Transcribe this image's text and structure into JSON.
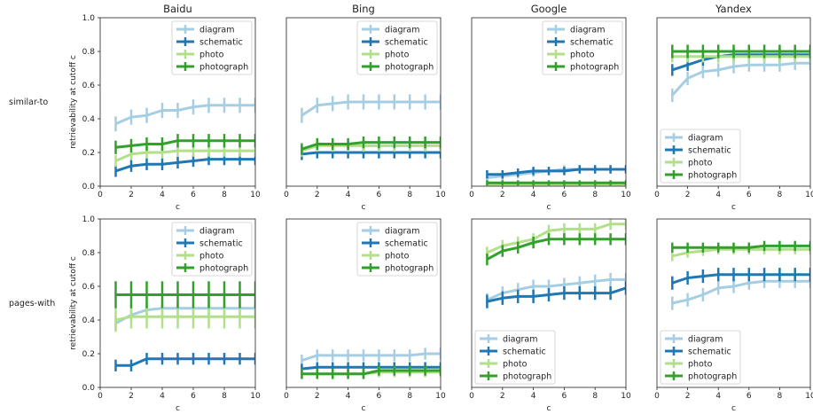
{
  "figure": {
    "columns": [
      "Baidu",
      "Bing",
      "Google",
      "Yandex"
    ],
    "rows": [
      "similar-to",
      "pages-with"
    ],
    "ylabel": "retrievability at cutoff c",
    "xlabel": "c",
    "x_ticks": [
      "0",
      "2",
      "4",
      "6",
      "8",
      "10"
    ],
    "y_ticks": [
      "0.0",
      "0.2",
      "0.4",
      "0.6",
      "0.8",
      "1.0"
    ]
  },
  "colors": {
    "diagram": "#a6cee3",
    "schematic": "#1f78b4",
    "photo": "#b2df8a",
    "photograph": "#33a02c"
  },
  "chart_data": [
    {
      "type": "line",
      "row": "similar-to",
      "column": "Baidu",
      "legend": "top-right",
      "x": [
        1,
        2,
        3,
        4,
        5,
        6,
        7,
        8,
        9,
        10
      ],
      "xlim": [
        0,
        10
      ],
      "ylim": [
        0,
        1
      ],
      "series": [
        {
          "name": "diagram",
          "values": [
            0.37,
            0.41,
            0.42,
            0.45,
            0.45,
            0.47,
            0.48,
            0.48,
            0.48,
            0.48
          ],
          "err": 0.045
        },
        {
          "name": "schematic",
          "values": [
            0.09,
            0.12,
            0.13,
            0.13,
            0.14,
            0.15,
            0.16,
            0.16,
            0.16,
            0.16
          ],
          "err": 0.035
        },
        {
          "name": "photo",
          "values": [
            0.15,
            0.19,
            0.2,
            0.2,
            0.21,
            0.21,
            0.21,
            0.21,
            0.21,
            0.21
          ],
          "err": 0.035
        },
        {
          "name": "photograph",
          "values": [
            0.23,
            0.24,
            0.25,
            0.25,
            0.27,
            0.27,
            0.27,
            0.27,
            0.27,
            0.27
          ],
          "err": 0.04
        }
      ]
    },
    {
      "type": "line",
      "row": "similar-to",
      "column": "Bing",
      "legend": "top-right",
      "x": [
        1,
        2,
        3,
        4,
        5,
        6,
        7,
        8,
        9,
        10
      ],
      "xlim": [
        0,
        10
      ],
      "ylim": [
        0,
        1
      ],
      "series": [
        {
          "name": "diagram",
          "values": [
            0.42,
            0.48,
            0.49,
            0.5,
            0.5,
            0.5,
            0.5,
            0.5,
            0.5,
            0.5
          ],
          "err": 0.045
        },
        {
          "name": "schematic",
          "values": [
            0.19,
            0.2,
            0.2,
            0.2,
            0.2,
            0.2,
            0.2,
            0.2,
            0.2,
            0.2
          ],
          "err": 0.035
        },
        {
          "name": "photo",
          "values": [
            0.21,
            0.24,
            0.24,
            0.24,
            0.24,
            0.24,
            0.24,
            0.24,
            0.24,
            0.24
          ],
          "err": 0.035
        },
        {
          "name": "photograph",
          "values": [
            0.22,
            0.25,
            0.25,
            0.25,
            0.26,
            0.26,
            0.26,
            0.26,
            0.26,
            0.26
          ],
          "err": 0.035
        }
      ]
    },
    {
      "type": "line",
      "row": "similar-to",
      "column": "Google",
      "legend": "top-right",
      "x": [
        1,
        2,
        3,
        4,
        5,
        6,
        7,
        8,
        9,
        10
      ],
      "xlim": [
        0,
        10
      ],
      "ylim": [
        0,
        1
      ],
      "series": [
        {
          "name": "diagram",
          "values": [
            0.05,
            0.06,
            0.07,
            0.08,
            0.09,
            0.1,
            0.1,
            0.1,
            0.1,
            0.1
          ],
          "err": 0.025
        },
        {
          "name": "schematic",
          "values": [
            0.07,
            0.07,
            0.08,
            0.09,
            0.09,
            0.09,
            0.1,
            0.1,
            0.1,
            0.1
          ],
          "err": 0.025
        },
        {
          "name": "photo",
          "values": [
            0.01,
            0.01,
            0.01,
            0.01,
            0.01,
            0.01,
            0.01,
            0.01,
            0.01,
            0.01
          ],
          "err": 0.01
        },
        {
          "name": "photograph",
          "values": [
            0.02,
            0.02,
            0.02,
            0.02,
            0.02,
            0.02,
            0.02,
            0.02,
            0.02,
            0.02
          ],
          "err": 0.015
        }
      ]
    },
    {
      "type": "line",
      "row": "similar-to",
      "column": "Yandex",
      "legend": "bottom-left",
      "x": [
        1,
        2,
        3,
        4,
        5,
        6,
        7,
        8,
        9,
        10
      ],
      "xlim": [
        0,
        10
      ],
      "ylim": [
        0,
        1
      ],
      "series": [
        {
          "name": "diagram",
          "values": [
            0.54,
            0.64,
            0.68,
            0.69,
            0.71,
            0.72,
            0.72,
            0.72,
            0.73,
            0.73
          ],
          "err": 0.04
        },
        {
          "name": "schematic",
          "values": [
            0.69,
            0.72,
            0.75,
            0.77,
            0.78,
            0.78,
            0.78,
            0.78,
            0.78,
            0.78
          ],
          "err": 0.035
        },
        {
          "name": "photo",
          "values": [
            0.77,
            0.77,
            0.77,
            0.77,
            0.77,
            0.77,
            0.77,
            0.77,
            0.77,
            0.77
          ],
          "err": 0.035
        },
        {
          "name": "photograph",
          "values": [
            0.8,
            0.8,
            0.8,
            0.8,
            0.8,
            0.8,
            0.8,
            0.8,
            0.8,
            0.8
          ],
          "err": 0.04
        }
      ]
    },
    {
      "type": "line",
      "row": "pages-with",
      "column": "Baidu",
      "legend": "top-right",
      "x": [
        1,
        2,
        3,
        4,
        5,
        6,
        7,
        8,
        9,
        10
      ],
      "xlim": [
        0,
        10
      ],
      "ylim": [
        0,
        1
      ],
      "series": [
        {
          "name": "diagram",
          "values": [
            0.38,
            0.43,
            0.46,
            0.47,
            0.47,
            0.47,
            0.47,
            0.47,
            0.47,
            0.47
          ],
          "err": 0.04
        },
        {
          "name": "schematic",
          "values": [
            0.13,
            0.13,
            0.17,
            0.17,
            0.17,
            0.17,
            0.17,
            0.17,
            0.17,
            0.17
          ],
          "err": 0.035
        },
        {
          "name": "photo",
          "values": [
            0.4,
            0.42,
            0.42,
            0.42,
            0.42,
            0.42,
            0.42,
            0.42,
            0.42,
            0.42
          ],
          "err": 0.07
        },
        {
          "name": "photograph",
          "values": [
            0.55,
            0.55,
            0.55,
            0.55,
            0.55,
            0.55,
            0.55,
            0.55,
            0.55,
            0.55
          ],
          "err": 0.08
        }
      ]
    },
    {
      "type": "line",
      "row": "pages-with",
      "column": "Bing",
      "legend": "top-right",
      "x": [
        1,
        2,
        3,
        4,
        5,
        6,
        7,
        8,
        9,
        10
      ],
      "xlim": [
        0,
        10
      ],
      "ylim": [
        0,
        1
      ],
      "series": [
        {
          "name": "diagram",
          "values": [
            0.16,
            0.19,
            0.19,
            0.19,
            0.19,
            0.19,
            0.19,
            0.19,
            0.2,
            0.2
          ],
          "err": 0.035
        },
        {
          "name": "schematic",
          "values": [
            0.11,
            0.12,
            0.12,
            0.12,
            0.12,
            0.12,
            0.12,
            0.12,
            0.12,
            0.12
          ],
          "err": 0.03
        },
        {
          "name": "photo",
          "values": [
            0.08,
            0.08,
            0.08,
            0.08,
            0.08,
            0.09,
            0.09,
            0.09,
            0.09,
            0.09
          ],
          "err": 0.03
        },
        {
          "name": "photograph",
          "values": [
            0.08,
            0.08,
            0.08,
            0.08,
            0.08,
            0.1,
            0.1,
            0.1,
            0.1,
            0.1
          ],
          "err": 0.03
        }
      ]
    },
    {
      "type": "line",
      "row": "pages-with",
      "column": "Google",
      "legend": "bottom-left",
      "x": [
        1,
        2,
        3,
        4,
        5,
        6,
        7,
        8,
        9,
        10
      ],
      "xlim": [
        0,
        10
      ],
      "ylim": [
        0,
        1
      ],
      "series": [
        {
          "name": "diagram",
          "values": [
            0.52,
            0.56,
            0.58,
            0.6,
            0.6,
            0.61,
            0.62,
            0.63,
            0.64,
            0.64
          ],
          "err": 0.04
        },
        {
          "name": "schematic",
          "values": [
            0.51,
            0.53,
            0.54,
            0.54,
            0.55,
            0.56,
            0.56,
            0.56,
            0.56,
            0.59
          ],
          "err": 0.04
        },
        {
          "name": "photo",
          "values": [
            0.8,
            0.84,
            0.86,
            0.88,
            0.93,
            0.94,
            0.94,
            0.94,
            0.97,
            0.97
          ],
          "err": 0.035
        },
        {
          "name": "photograph",
          "values": [
            0.76,
            0.81,
            0.83,
            0.86,
            0.88,
            0.88,
            0.88,
            0.88,
            0.88,
            0.88
          ],
          "err": 0.035
        }
      ]
    },
    {
      "type": "line",
      "row": "pages-with",
      "column": "Yandex",
      "legend": "bottom-left",
      "x": [
        1,
        2,
        3,
        4,
        5,
        6,
        7,
        8,
        9,
        10
      ],
      "xlim": [
        0,
        10
      ],
      "ylim": [
        0,
        1
      ],
      "series": [
        {
          "name": "diagram",
          "values": [
            0.5,
            0.52,
            0.55,
            0.59,
            0.6,
            0.62,
            0.63,
            0.63,
            0.63,
            0.63
          ],
          "err": 0.04
        },
        {
          "name": "schematic",
          "values": [
            0.62,
            0.65,
            0.66,
            0.67,
            0.67,
            0.67,
            0.67,
            0.67,
            0.67,
            0.67
          ],
          "err": 0.04
        },
        {
          "name": "photo",
          "values": [
            0.78,
            0.8,
            0.81,
            0.82,
            0.82,
            0.82,
            0.82,
            0.82,
            0.82,
            0.82
          ],
          "err": 0.03
        },
        {
          "name": "photograph",
          "values": [
            0.83,
            0.83,
            0.83,
            0.83,
            0.83,
            0.83,
            0.84,
            0.84,
            0.84,
            0.84
          ],
          "err": 0.03
        }
      ]
    }
  ]
}
